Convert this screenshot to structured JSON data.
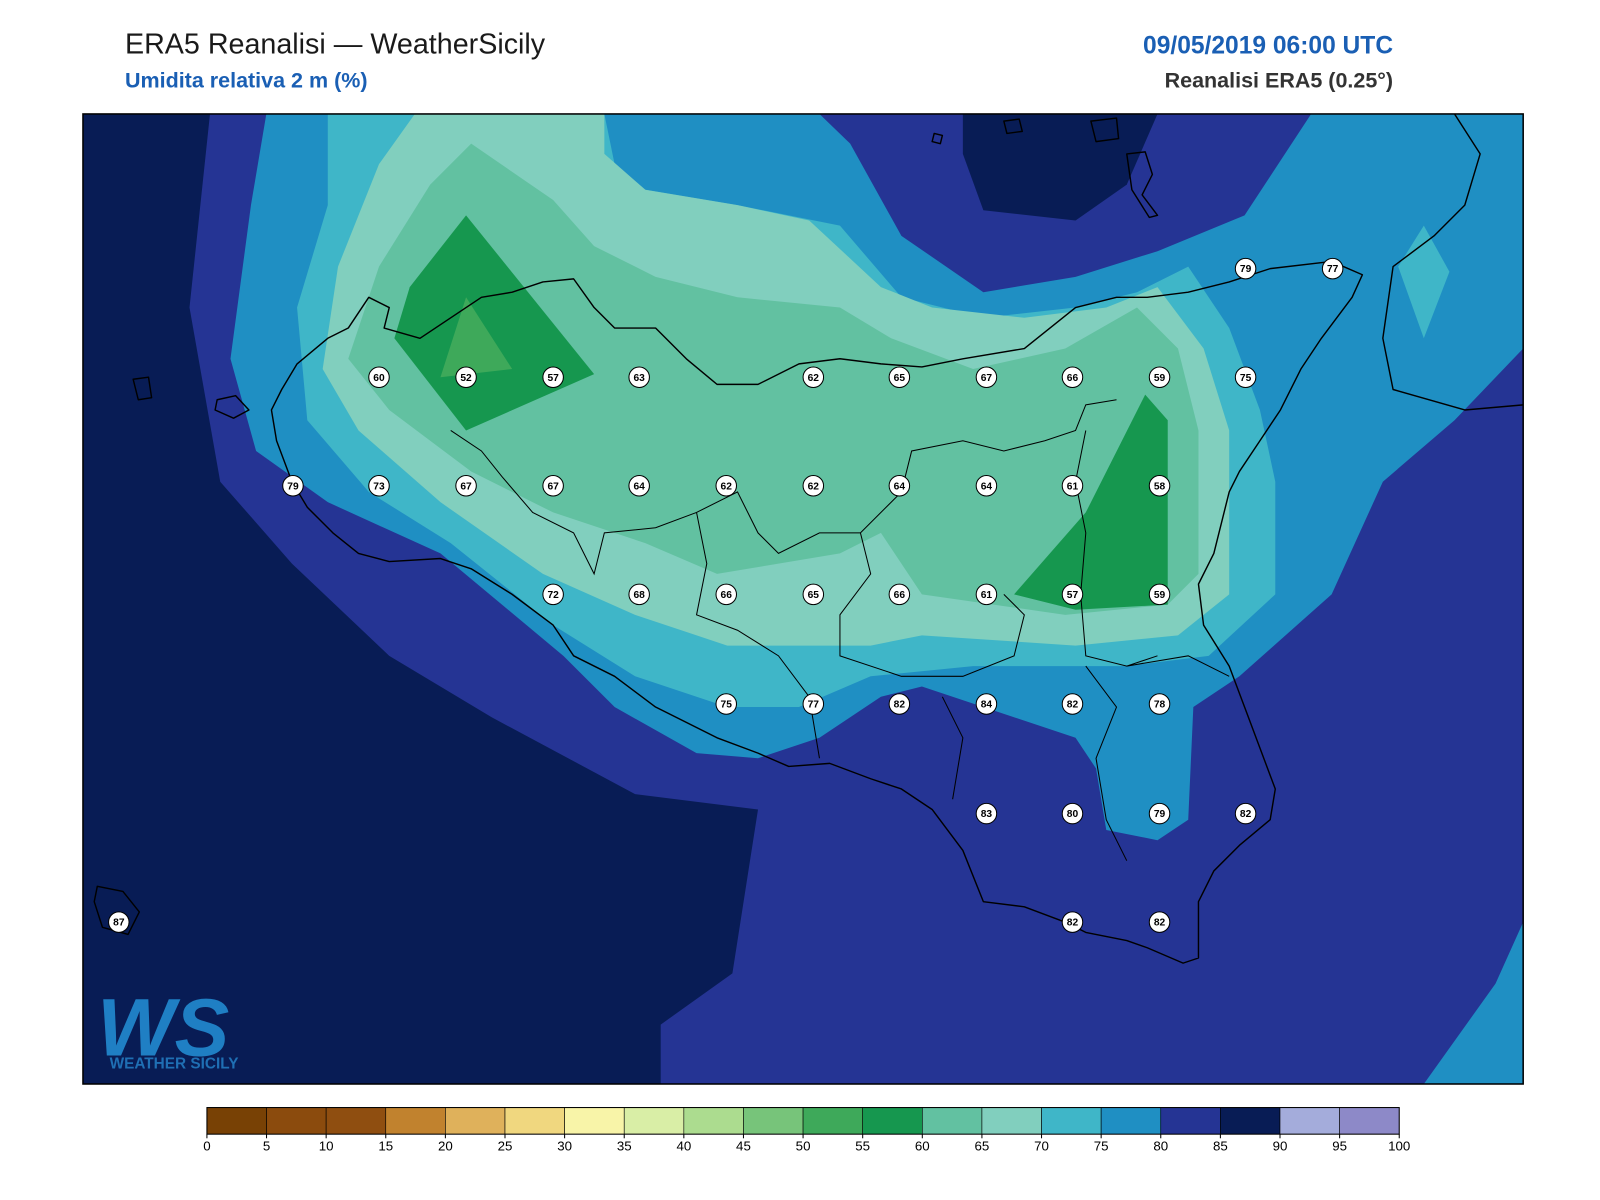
{
  "header": {
    "title": "ERA5 Reanalisi — WeatherSicily",
    "subtitle": "Umidita relativa 2 m (%)",
    "date": "09/05/2019 06:00 UTC",
    "source": "Reanalisi ERA5 (0.25°)"
  },
  "stations": [
    60,
    52,
    57,
    63,
    62,
    65,
    67,
    66,
    59,
    75,
    79,
    77,
    79,
    73,
    67,
    67,
    64,
    62,
    62,
    64,
    64,
    61,
    58,
    72,
    68,
    66,
    65,
    66,
    61,
    57,
    59,
    75,
    77,
    82,
    84,
    82,
    78,
    83,
    80,
    79,
    82,
    87,
    82,
    82
  ],
  "colorbar": {
    "ticks": [
      0,
      5,
      10,
      15,
      20,
      25,
      30,
      35,
      40,
      45,
      50,
      55,
      60,
      65,
      70,
      75,
      80,
      85,
      90,
      95,
      100
    ],
    "colors": [
      "#784105",
      "#8b4b0d",
      "#8f4e10",
      "#c1822e",
      "#dfb15b",
      "#f0d77f",
      "#f8f4a8",
      "#d9eea6",
      "#acdc8f",
      "#77c47a",
      "#3ea95a",
      "#16974f",
      "#62c1a1",
      "#81cfbe",
      "#3fb6c8",
      "#1f8fc3",
      "#253494",
      "#081c55",
      "#a4acdb",
      "#8d89c8"
    ]
  },
  "logo": {
    "mark": "WS",
    "name": "WEATHER SICILY"
  }
}
